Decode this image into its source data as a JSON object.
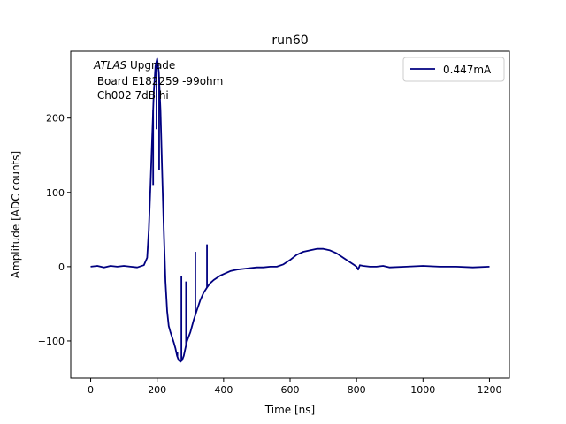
{
  "chart_data": {
    "type": "line",
    "title": "run60",
    "xlabel": "Time [ns]",
    "ylabel": "Amplitude [ADC counts]",
    "xlim": [
      -60,
      1260
    ],
    "ylim": [
      -150,
      290
    ],
    "xticks": [
      0,
      200,
      400,
      600,
      800,
      1000,
      1200
    ],
    "yticks": [
      -100,
      0,
      100,
      200
    ],
    "xtick_labels": [
      "0",
      "200",
      "400",
      "600",
      "800",
      "1000",
      "1200"
    ],
    "ytick_labels": [
      "−100",
      "0",
      "100",
      "200"
    ],
    "grid": false,
    "legend_position": "top-right",
    "annotation": {
      "line1_italic": "ATLAS",
      "line1_rest": " Upgrade",
      "line2": " Board E182259 -99ohm",
      "line3": " Ch002 7dB hi"
    },
    "series": [
      {
        "name": "0.447mA",
        "color": "#000080",
        "x": [
          0,
          20,
          40,
          60,
          80,
          100,
          120,
          140,
          160,
          170,
          175,
          180,
          185,
          190,
          195,
          200,
          205,
          210,
          215,
          220,
          225,
          230,
          235,
          240,
          245,
          250,
          255,
          260,
          265,
          270,
          275,
          280,
          285,
          290,
          300,
          310,
          320,
          330,
          340,
          350,
          360,
          370,
          380,
          390,
          400,
          420,
          440,
          460,
          480,
          500,
          520,
          540,
          560,
          580,
          600,
          620,
          640,
          660,
          680,
          700,
          720,
          740,
          760,
          780,
          790,
          800,
          805,
          810,
          820,
          840,
          860,
          880,
          900,
          950,
          1000,
          1050,
          1100,
          1150,
          1200
        ],
        "y": [
          0,
          1,
          -1,
          1,
          0,
          1,
          0,
          -1,
          2,
          12,
          50,
          110,
          175,
          235,
          270,
          280,
          262,
          210,
          130,
          50,
          -20,
          -60,
          -80,
          -88,
          -95,
          -102,
          -110,
          -120,
          -126,
          -128,
          -126,
          -120,
          -110,
          -100,
          -88,
          -72,
          -58,
          -45,
          -35,
          -28,
          -22,
          -18,
          -15,
          -12,
          -10,
          -6,
          -4,
          -3,
          -2,
          -1,
          -1,
          0,
          0,
          3,
          9,
          16,
          20,
          22,
          24,
          24,
          22,
          18,
          12,
          6,
          3,
          0,
          -4,
          2,
          1,
          0,
          0,
          1,
          -1,
          0,
          1,
          0,
          0,
          -1,
          0
        ]
      }
    ],
    "spikes": [
      {
        "x": 188,
        "y": 110
      },
      {
        "x": 198,
        "y": 185
      },
      {
        "x": 206,
        "y": 130
      },
      {
        "x": 261,
        "y": -115
      },
      {
        "x": 273,
        "y": -12
      },
      {
        "x": 287,
        "y": -20
      },
      {
        "x": 315,
        "y": 20
      },
      {
        "x": 350,
        "y": 30
      }
    ]
  }
}
